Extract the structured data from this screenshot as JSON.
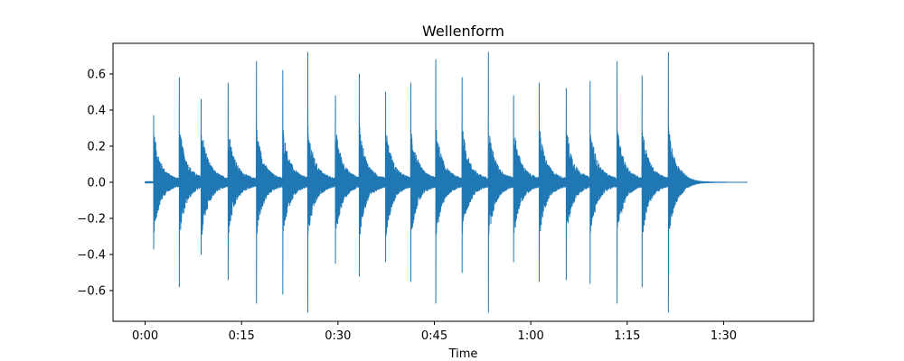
{
  "chart_data": {
    "type": "line",
    "title": "Wellenform",
    "xlabel": "Time",
    "ylabel": "",
    "x_unit": "seconds",
    "xlim": [
      -5,
      104
    ],
    "ylim": [
      -0.77,
      0.77
    ],
    "x_ticks": [
      {
        "value": 0,
        "label": "0:00"
      },
      {
        "value": 15,
        "label": "0:15"
      },
      {
        "value": 30,
        "label": "0:30"
      },
      {
        "value": 45,
        "label": "0:45"
      },
      {
        "value": 60,
        "label": "1:00"
      },
      {
        "value": 75,
        "label": "1:15"
      },
      {
        "value": 90,
        "label": "1:30"
      }
    ],
    "y_ticks": [
      {
        "value": 0.6,
        "label": "0.6"
      },
      {
        "value": 0.4,
        "label": "0.4"
      },
      {
        "value": 0.2,
        "label": "0.2"
      },
      {
        "value": 0.0,
        "label": "0.0"
      },
      {
        "value": -0.2,
        "label": "−0.2"
      },
      {
        "value": -0.4,
        "label": "−0.4"
      },
      {
        "value": -0.6,
        "label": "−0.6"
      }
    ],
    "grid": false,
    "color": "#1f77b4",
    "duration": 93.7,
    "series": [
      {
        "name": "",
        "onsets": [
          {
            "t": 1.3,
            "peak": 0.37,
            "low": -0.37
          },
          {
            "t": 5.3,
            "peak": 0.58,
            "low": -0.58
          },
          {
            "t": 8.7,
            "peak": 0.46,
            "low": -0.4
          },
          {
            "t": 12.9,
            "peak": 0.55,
            "low": -0.54
          },
          {
            "t": 17.3,
            "peak": 0.67,
            "low": -0.67
          },
          {
            "t": 21.4,
            "peak": 0.62,
            "low": -0.62
          },
          {
            "t": 25.3,
            "peak": 0.72,
            "low": -0.72
          },
          {
            "t": 29.6,
            "peak": 0.48,
            "low": -0.45
          },
          {
            "t": 33.3,
            "peak": 0.6,
            "low": -0.52
          },
          {
            "t": 37.4,
            "peak": 0.5,
            "low": -0.44
          },
          {
            "t": 41.3,
            "peak": 0.55,
            "low": -0.55
          },
          {
            "t": 45.2,
            "peak": 0.68,
            "low": -0.67
          },
          {
            "t": 49.3,
            "peak": 0.58,
            "low": -0.5
          },
          {
            "t": 53.4,
            "peak": 0.72,
            "low": -0.72
          },
          {
            "t": 57.3,
            "peak": 0.48,
            "low": -0.44
          },
          {
            "t": 61.3,
            "peak": 0.55,
            "low": -0.55
          },
          {
            "t": 65.5,
            "peak": 0.52,
            "low": -0.54
          },
          {
            "t": 69.2,
            "peak": 0.56,
            "low": -0.56
          },
          {
            "t": 73.4,
            "peak": 0.67,
            "low": -0.67
          },
          {
            "t": 77.3,
            "peak": 0.59,
            "low": -0.58
          },
          {
            "t": 81.4,
            "peak": 0.72,
            "low": -0.72
          }
        ]
      }
    ]
  }
}
